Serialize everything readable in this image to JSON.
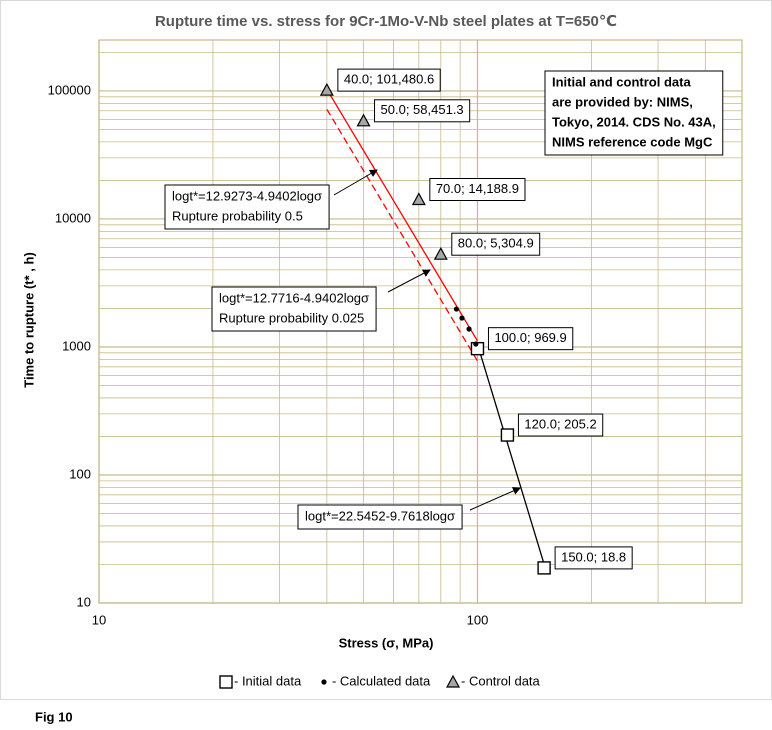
{
  "chart_data": {
    "type": "scatter",
    "title": "Rupture time vs. stress for 9Cr-1Mo-V-Nb steel plates at T=650℃",
    "x_label": "Stress (σ, MPa)",
    "y_label": "Time to rupture (t* , h)",
    "log_x": true,
    "log_y": true,
    "xlim": [
      10,
      500
    ],
    "ylim": [
      10,
      250000
    ],
    "xticks": [
      10,
      100
    ],
    "yticks": [
      10,
      100,
      1000,
      10000,
      100000
    ],
    "grid": true,
    "minor_grid": true,
    "grid_color": "#c9b98a",
    "legend_position": "bottom",
    "series": [
      {
        "name": "- Initial data",
        "marker": "square",
        "color": "#000000",
        "x": [
          100,
          120,
          150
        ],
        "values": [
          969.9,
          205.2,
          18.8
        ],
        "value_labels": [
          "100.0; 969.9",
          "120.0; 205.2",
          "150.0; 18.8"
        ]
      },
      {
        "name": "- Calculated data",
        "marker": "dot",
        "color": "#000000",
        "x": [
          88,
          91,
          95,
          99
        ],
        "values": [
          1977,
          1682,
          1381,
          1055
        ]
      },
      {
        "name": "- Control data",
        "marker": "triangle",
        "color": "#a6a6a6",
        "x": [
          40,
          50,
          70,
          80
        ],
        "values": [
          101480.6,
          58451.3,
          14188.9,
          5304.9
        ],
        "value_labels": [
          "40.0; 101,480.6",
          "50.0; 58,451.3",
          "70.0; 14,188.9",
          "80.0; 5,304.9"
        ]
      }
    ],
    "fit_lines": [
      {
        "color": "#ff0000",
        "dashed": false,
        "x": [
          40,
          100
        ],
        "values": [
          103000,
          1114
        ]
      },
      {
        "color": "#ff0000",
        "dashed": true,
        "x": [
          40,
          100
        ],
        "values": [
          71900,
          778
        ]
      },
      {
        "color": "#000000",
        "dashed": false,
        "x": [
          100,
          150
        ],
        "values": [
          1051,
          20.1
        ]
      }
    ],
    "annotations": [
      {
        "text": [
          "logt*=12.9273-4.9402logσ",
          "Rupture probability 0.5"
        ]
      },
      {
        "text": [
          "logt*=12.7716-4.9402logσ",
          "Rupture probability 0.025"
        ]
      },
      {
        "text": [
          "logt*=22.5452-9.7618logσ"
        ]
      }
    ],
    "note": [
      "Initial and control data",
      "are provided by: NIMS,",
      "Tokyo, 2014. CDS No. 43A,",
      "NIMS reference code MgC"
    ],
    "caption": "Fig 10"
  }
}
